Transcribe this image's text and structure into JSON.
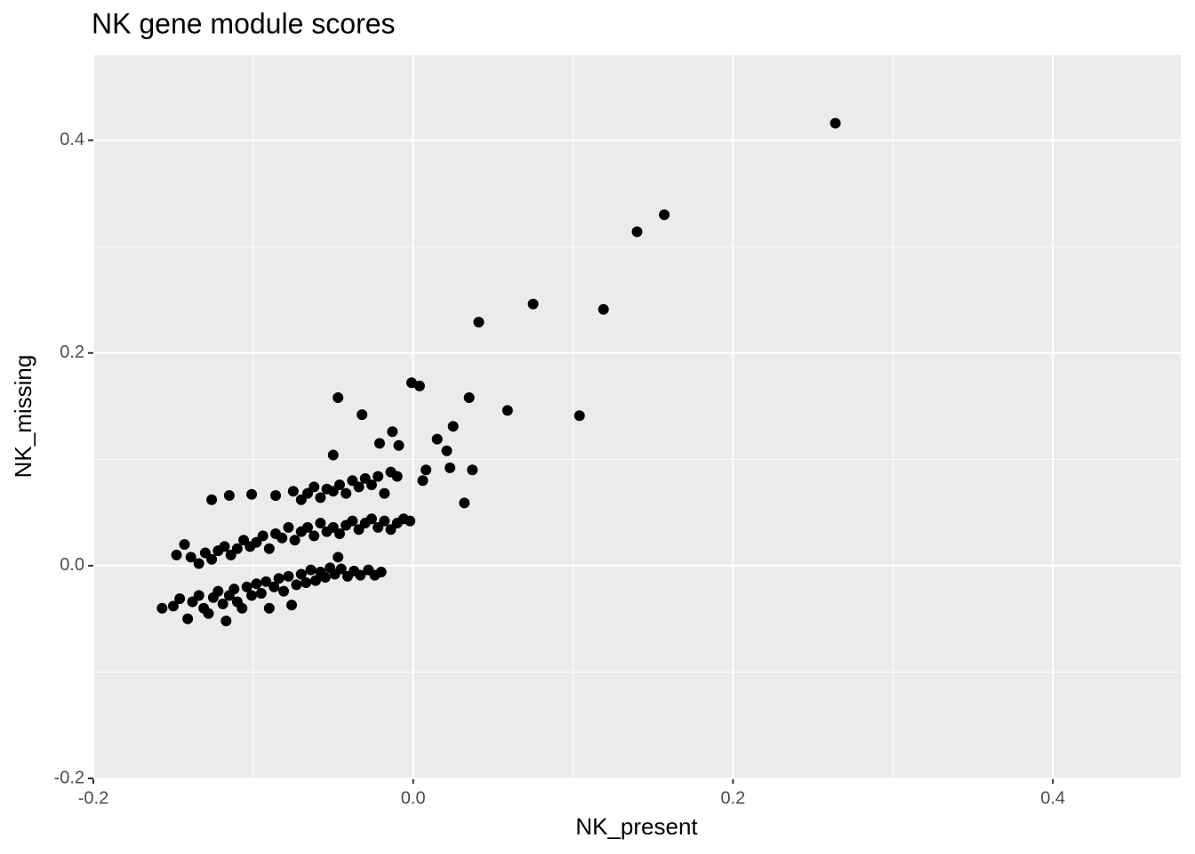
{
  "chart_data": {
    "type": "scatter",
    "title": "NK gene module scores",
    "x_label": "NK_present",
    "y_label": "NK_missing",
    "xlim": [
      -0.2,
      0.48
    ],
    "ylim": [
      -0.2,
      0.48
    ],
    "xticks": [
      -0.2,
      {
        "value": 0,
        "label": "0.0"
      },
      0.2,
      0.4
    ],
    "yticks": [
      -0.2,
      {
        "value": 0,
        "label": "0.0"
      },
      0.2,
      0.4
    ],
    "xminor": [
      -0.1,
      0.1,
      0.3
    ],
    "yminor": [
      -0.1,
      0.1,
      0.3
    ],
    "grid": true,
    "background": "#ebebeb",
    "series": [
      {
        "color": "#000000",
        "x": [
          -0.157,
          -0.15,
          -0.146,
          -0.141,
          -0.138,
          -0.134,
          -0.131,
          -0.128,
          -0.125,
          -0.122,
          -0.119,
          -0.117,
          -0.115,
          -0.112,
          -0.11,
          -0.107,
          -0.104,
          -0.101,
          -0.098,
          -0.095,
          -0.092,
          -0.09,
          -0.087,
          -0.084,
          -0.081,
          -0.078,
          -0.076,
          -0.073,
          -0.07,
          -0.067,
          -0.064,
          -0.061,
          -0.058,
          -0.055,
          -0.052,
          -0.049,
          -0.045,
          -0.041,
          -0.037,
          -0.033,
          -0.028,
          -0.024,
          -0.02,
          -0.148,
          -0.143,
          -0.139,
          -0.134,
          -0.13,
          -0.126,
          -0.122,
          -0.118,
          -0.114,
          -0.11,
          -0.106,
          -0.102,
          -0.098,
          -0.094,
          -0.09,
          -0.086,
          -0.082,
          -0.078,
          -0.074,
          -0.07,
          -0.066,
          -0.062,
          -0.058,
          -0.054,
          -0.05,
          -0.046,
          -0.042,
          -0.038,
          -0.034,
          -0.03,
          -0.026,
          -0.022,
          -0.018,
          -0.014,
          -0.01,
          -0.006,
          -0.002,
          -0.075,
          -0.07,
          -0.066,
          -0.062,
          -0.058,
          -0.054,
          -0.05,
          -0.046,
          -0.042,
          -0.038,
          -0.034,
          -0.03,
          -0.026,
          -0.022,
          -0.018,
          -0.014,
          -0.01,
          -0.086,
          -0.101,
          -0.115,
          -0.126,
          0.264,
          0.157,
          0.14,
          0.075,
          0.119,
          0.041,
          -0.001,
          0.004,
          0.035,
          -0.047,
          0.059,
          0.104,
          -0.032,
          0.015,
          0.025,
          0.021,
          0.023,
          0.037,
          0.032,
          0.008,
          0.006,
          -0.013,
          -0.021,
          -0.009,
          -0.05,
          -0.047
        ],
        "y": [
          -0.04,
          -0.038,
          -0.031,
          -0.05,
          -0.034,
          -0.028,
          -0.04,
          -0.045,
          -0.03,
          -0.024,
          -0.036,
          -0.052,
          -0.028,
          -0.022,
          -0.034,
          -0.04,
          -0.02,
          -0.028,
          -0.017,
          -0.026,
          -0.015,
          -0.04,
          -0.02,
          -0.012,
          -0.024,
          -0.01,
          -0.037,
          -0.018,
          -0.008,
          -0.016,
          -0.004,
          -0.014,
          -0.006,
          -0.011,
          -0.002,
          -0.008,
          -0.003,
          -0.01,
          -0.005,
          -0.009,
          -0.004,
          -0.009,
          -0.006,
          0.01,
          0.02,
          0.008,
          0.002,
          0.012,
          0.006,
          0.014,
          0.018,
          0.01,
          0.016,
          0.024,
          0.018,
          0.022,
          0.028,
          0.016,
          0.03,
          0.026,
          0.036,
          0.024,
          0.032,
          0.036,
          0.028,
          0.04,
          0.032,
          0.036,
          0.03,
          0.038,
          0.042,
          0.034,
          0.04,
          0.044,
          0.036,
          0.042,
          0.034,
          0.04,
          0.044,
          0.042,
          0.07,
          0.062,
          0.068,
          0.074,
          0.064,
          0.072,
          0.07,
          0.076,
          0.068,
          0.08,
          0.074,
          0.082,
          0.076,
          0.084,
          0.068,
          0.088,
          0.084,
          0.066,
          0.067,
          0.066,
          0.062,
          0.416,
          0.33,
          0.314,
          0.246,
          0.241,
          0.229,
          0.172,
          0.169,
          0.158,
          0.158,
          0.146,
          0.141,
          0.142,
          0.119,
          0.131,
          0.108,
          0.092,
          0.09,
          0.059,
          0.09,
          0.08,
          0.126,
          0.115,
          0.113,
          0.104,
          0.008
        ]
      }
    ]
  }
}
